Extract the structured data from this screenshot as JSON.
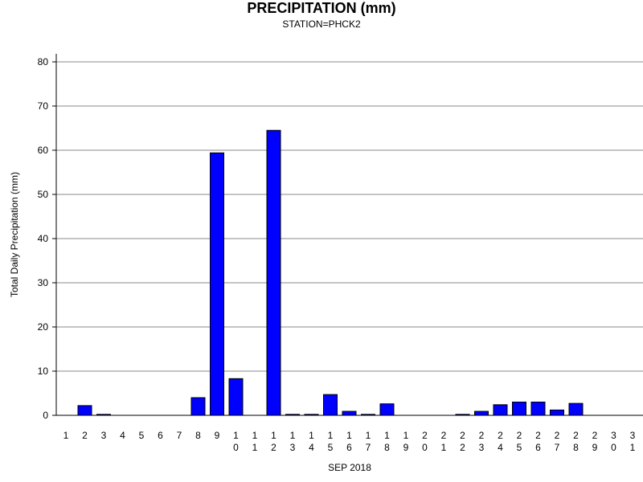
{
  "chart_data": {
    "type": "bar",
    "title": "PRECIPITATION (mm)",
    "subtitle": "STATION=PHCK2",
    "xlabel": "SEP 2018",
    "ylabel": "Total Daily Precipitation (mm)",
    "ylim": [
      0,
      80
    ],
    "yticks": [
      0,
      10,
      20,
      30,
      40,
      50,
      60,
      70,
      80
    ],
    "grid": true,
    "bar_color": "#0000ff",
    "categories": [
      "1",
      "2",
      "3",
      "4",
      "5",
      "6",
      "7",
      "8",
      "9",
      "10",
      "11",
      "12",
      "13",
      "14",
      "15",
      "16",
      "17",
      "18",
      "19",
      "20",
      "21",
      "22",
      "23",
      "24",
      "25",
      "26",
      "27",
      "28",
      "29",
      "30",
      "31"
    ],
    "values": [
      null,
      2.2,
      0.2,
      null,
      null,
      null,
      null,
      4.0,
      59.4,
      8.3,
      null,
      64.5,
      0.2,
      0.2,
      4.7,
      0.9,
      0.2,
      2.6,
      null,
      null,
      null,
      0.2,
      0.9,
      2.4,
      3.0,
      3.0,
      1.2,
      2.7,
      null,
      null,
      null
    ]
  }
}
